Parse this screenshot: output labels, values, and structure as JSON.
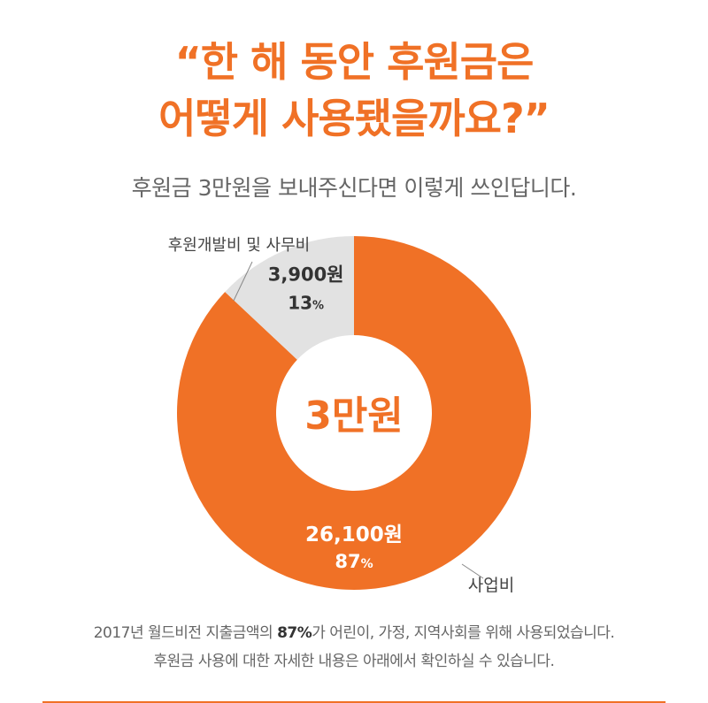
{
  "header": {
    "title_line1": "“한 해 동안 후원금은",
    "title_line2": "어떻게 사용됐을까요?”",
    "subtitle": "후원금 3만원을 보내주신다면 이렇게 쓰인답니다."
  },
  "chart_data": {
    "type": "pie",
    "donut": true,
    "center_label": "3만원",
    "slices": [
      {
        "label": "사업비",
        "amount": 26100,
        "amount_text": "26,100원",
        "percent": 87,
        "percent_text": "87",
        "color": "#f07126"
      },
      {
        "label": "후원개발비 및 사무비",
        "amount": 3900,
        "amount_text": "3,900원",
        "percent": 13,
        "percent_text": "13",
        "color": "#e2e2e2"
      }
    ],
    "percent_unit": "%"
  },
  "footnote": {
    "line1_prefix": "2017년 월드비전 지출금액의 ",
    "line1_bold": "87%",
    "line1_suffix": "가 어린이, 가정, 지역사회를 위해 사용되었습니다.",
    "line2": "후원금 사용에 대한 자세한 내용은 아래에서 확인하실 수 있습니다."
  },
  "colors": {
    "accent": "#f07126",
    "grey_slice": "#e2e2e2",
    "text_grey": "#666666"
  }
}
